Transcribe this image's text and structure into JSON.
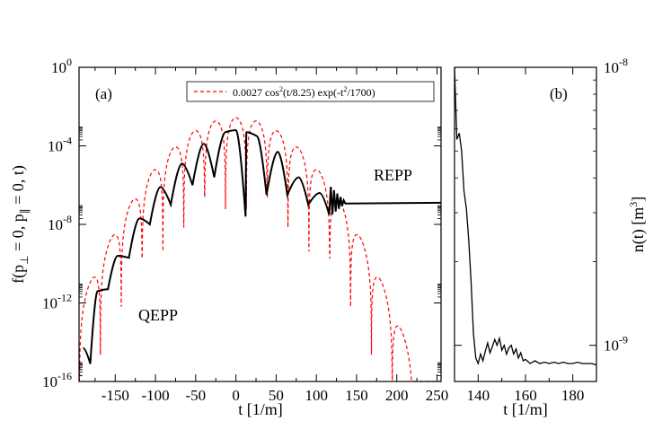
{
  "chart_data": [
    {
      "type": "line",
      "panel_label": "(a)",
      "xlabel": "t [1/m]",
      "ylabel_parts": {
        "a": "f(p",
        "b": " = 0,  p",
        "c": " = 0, t)",
        "sub1": "⊥",
        "sub2": "∥"
      },
      "xlim": [
        -195,
        255
      ],
      "ylim_log10": [
        -16,
        0
      ],
      "log_y": true,
      "x_ticks": [
        -150,
        -100,
        -50,
        0,
        50,
        100,
        150,
        200,
        250
      ],
      "x_tick_labels": [
        "-150",
        "-100",
        "-50",
        "0",
        "50",
        "100",
        "150",
        "200",
        "250"
      ],
      "y_tick_exponents": [
        0,
        -4,
        -8,
        -12,
        -16
      ],
      "y_tick_base": "10",
      "legend": {
        "label": "0.0027 cos",
        "sup1": "2",
        "label_mid": "(t/8.25) exp(-t",
        "sup2": "2",
        "label_end": "/1700)",
        "placement": "top-right"
      },
      "annotations": {
        "reepp": "REPP",
        "qeepp": "QEPP"
      },
      "series": [
        {
          "name": "0.0027 cos²(t/8.25) exp(-t²/1700)",
          "style": "dashed",
          "color": "#ff0000",
          "model": {
            "amplitude": 0.0027,
            "period_divisor": 8.25,
            "gauss_width": 1700
          }
        },
        {
          "style": "solid",
          "color": "#000000",
          "peaks": [
            {
              "t": -190,
              "log10": -14.3
            },
            {
              "t": -172,
              "log10": -11.4
            },
            {
              "t": -147,
              "log10": -9.6
            },
            {
              "t": -120,
              "log10": -7.7
            },
            {
              "t": -94,
              "log10": -6.1
            },
            {
              "t": -67,
              "log10": -4.9
            },
            {
              "t": -40,
              "log10": -3.9
            },
            {
              "t": -13,
              "log10": -3.3
            },
            {
              "t": 0,
              "log10": -3.2
            },
            {
              "t": 13,
              "log10": -3.3
            },
            {
              "t": 26,
              "log10": -3.5
            },
            {
              "t": 52,
              "log10": -4.3
            },
            {
              "t": 78,
              "log10": -5.6
            },
            {
              "t": 104,
              "log10": -6.4
            }
          ],
          "minima": [
            {
              "t": -181,
              "log10": -15.1
            },
            {
              "t": -159,
              "log10": -11.3
            },
            {
              "t": -133,
              "log10": -9.7
            },
            {
              "t": -107,
              "log10": -8.0
            },
            {
              "t": -81,
              "log10": -7.0
            },
            {
              "t": -54,
              "log10": -6.0
            },
            {
              "t": -27,
              "log10": -5.6
            },
            {
              "t": 12,
              "log10": -7.6
            },
            {
              "t": 38,
              "log10": -6.5
            },
            {
              "t": 64,
              "log10": -6.5
            },
            {
              "t": 90,
              "log10": -7.0
            },
            {
              "t": 116,
              "log10": -7.5
            }
          ],
          "plateau": {
            "t_start": 135,
            "log10": -6.9
          }
        }
      ]
    },
    {
      "type": "line",
      "panel_label": "(b)",
      "xlabel": "t [1/m]",
      "ylabel": "n(t) [m",
      "ylabel_sup": "3",
      "ylabel_end": "]",
      "xlim": [
        130,
        190
      ],
      "ylim_log10": [
        -9.13,
        -8.0
      ],
      "log_y": true,
      "x_ticks": [
        140,
        160,
        180
      ],
      "x_tick_labels": [
        "140",
        "160",
        "180"
      ],
      "y_tick_exponents": [
        -8,
        -9
      ],
      "y_tick_base": "10",
      "series": [
        {
          "style": "solid",
          "color": "#000000",
          "x": [
            130,
            131,
            132,
            133,
            134,
            135,
            136,
            137,
            138,
            139,
            140,
            141,
            142,
            143,
            144,
            145,
            146,
            147,
            148,
            149,
            150,
            151,
            152,
            153,
            154,
            155,
            156,
            157,
            158,
            159,
            160,
            162,
            164,
            166,
            168,
            170,
            172,
            174,
            176,
            178,
            180,
            182,
            184,
            186,
            188,
            190
          ],
          "y": [
            1e-08,
            5.5e-09,
            5.8e-09,
            5e-09,
            3.6e-09,
            3.1e-09,
            2.4e-09,
            1.7e-09,
            1.1e-09,
            9e-10,
            8.6e-10,
            9.3e-10,
            8.8e-10,
            9.5e-10,
            1.02e-09,
            9.4e-10,
            9.9e-10,
            1.05e-09,
            1e-09,
            1.06e-09,
            9.6e-10,
            1e-09,
            9.3e-10,
            9.8e-10,
            1e-09,
            9.3e-10,
            9.7e-10,
            9e-10,
            9.4e-10,
            8.8e-10,
            8.9e-10,
            8.6e-10,
            8.8e-10,
            8.6e-10,
            8.7e-10,
            8.6e-10,
            8.7e-10,
            8.6e-10,
            8.7e-10,
            8.6e-10,
            8.6e-10,
            8.7e-10,
            8.6e-10,
            8.6e-10,
            8.6e-10,
            8.5e-10
          ]
        }
      ]
    }
  ]
}
